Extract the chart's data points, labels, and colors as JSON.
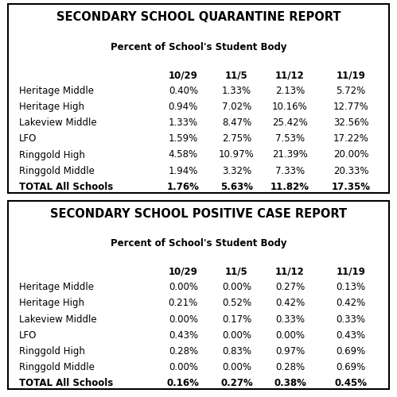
{
  "table1_title": "SECONDARY SCHOOL QUARANTINE REPORT",
  "table2_title": "SECONDARY SCHOOL POSITIVE CASE REPORT",
  "subtitle": "Percent of School's Student Body",
  "col_headers": [
    "10/29",
    "11/5",
    "11/12",
    "11/19"
  ],
  "row_labels": [
    "Heritage Middle",
    "Heritage High",
    "Lakeview Middle",
    "LFO",
    "Ringgold High",
    "Ringgold Middle",
    "TOTAL All Schools"
  ],
  "table1_data": [
    [
      "0.40%",
      "1.33%",
      "2.13%",
      "5.72%"
    ],
    [
      "0.94%",
      "7.02%",
      "10.16%",
      "12.77%"
    ],
    [
      "1.33%",
      "8.47%",
      "25.42%",
      "32.56%"
    ],
    [
      "1.59%",
      "2.75%",
      "7.53%",
      "17.22%"
    ],
    [
      "4.58%",
      "10.97%",
      "21.39%",
      "20.00%"
    ],
    [
      "1.94%",
      "3.32%",
      "7.33%",
      "20.33%"
    ],
    [
      "1.76%",
      "5.63%",
      "11.82%",
      "17.35%"
    ]
  ],
  "table2_data": [
    [
      "0.00%",
      "0.00%",
      "0.27%",
      "0.13%"
    ],
    [
      "0.21%",
      "0.52%",
      "0.42%",
      "0.42%"
    ],
    [
      "0.00%",
      "0.17%",
      "0.33%",
      "0.33%"
    ],
    [
      "0.43%",
      "0.00%",
      "0.00%",
      "0.43%"
    ],
    [
      "0.28%",
      "0.83%",
      "0.97%",
      "0.69%"
    ],
    [
      "0.00%",
      "0.00%",
      "0.28%",
      "0.69%"
    ],
    [
      "0.16%",
      "0.27%",
      "0.38%",
      "0.45%"
    ]
  ],
  "bg_color": "#ffffff",
  "border_color": "#000000",
  "text_color": "#000000",
  "title_fontsize": 10.5,
  "subtitle_fontsize": 8.5,
  "header_fontsize": 8.5,
  "data_fontsize": 8.5,
  "label_fontsize": 8.5
}
